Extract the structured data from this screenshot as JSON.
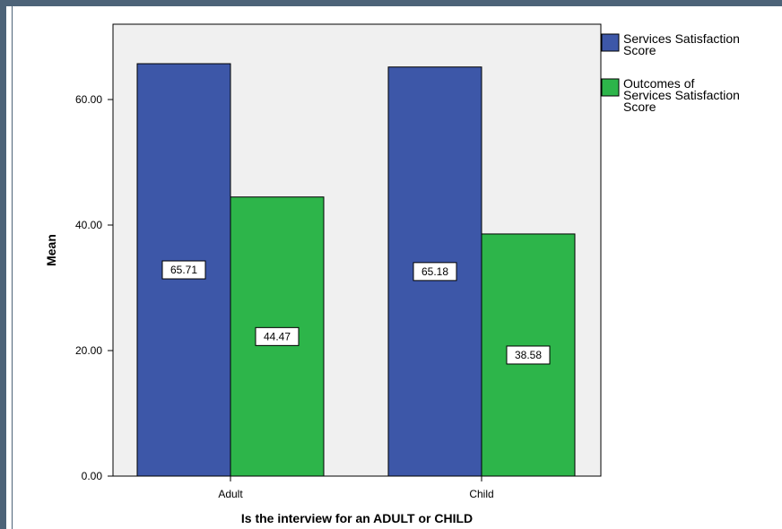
{
  "chart_data": {
    "type": "bar",
    "categories": [
      "Adult",
      "Child"
    ],
    "series": [
      {
        "name": "Services Satisfaction Score",
        "values": [
          65.71,
          65.18
        ],
        "color": "#3d57a8"
      },
      {
        "name": "Outcomes of Services Satisfaction Score",
        "values": [
          44.47,
          38.58
        ],
        "color": "#2db54a"
      }
    ],
    "data_labels": [
      [
        "65.71",
        "65.18"
      ],
      [
        "44.47",
        "38.58"
      ]
    ],
    "xlabel": "Is the interview for an ADULT or CHILD",
    "ylabel": "Mean",
    "ylim": [
      0,
      72
    ],
    "yticks": [
      0,
      20,
      40,
      60
    ],
    "ytick_labels": [
      "0.00",
      "20.00",
      "40.00",
      "60.00"
    ],
    "legend": [
      {
        "lines": [
          "Services Satisfaction",
          "Score"
        ]
      },
      {
        "lines": [
          "Outcomes of",
          "Services Satisfaction",
          "Score"
        ]
      }
    ],
    "legend_position": "top-right",
    "plot_background": "#f0f0f0",
    "grid": false
  }
}
